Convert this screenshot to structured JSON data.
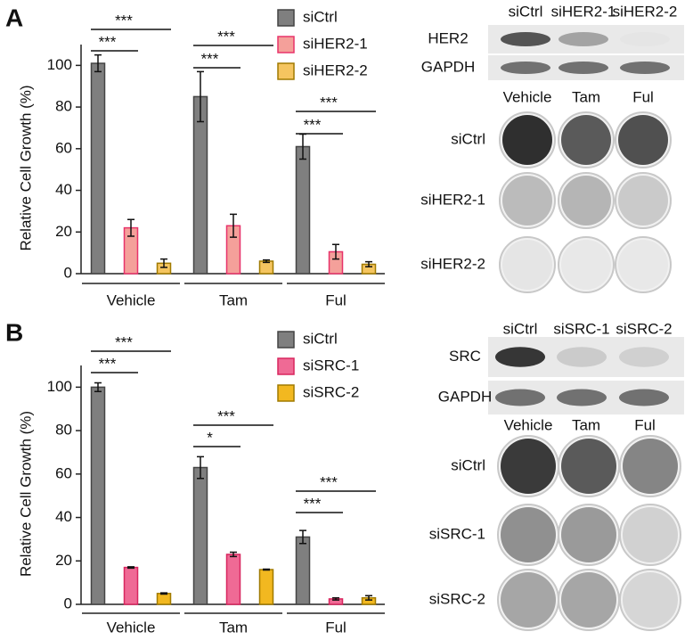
{
  "chart_data": [
    {
      "type": "bar",
      "panel_label": "A",
      "ylabel": "Relative Cell Growth (%)",
      "categories": [
        "Vehicle",
        "Tam",
        "Ful"
      ],
      "series": [
        {
          "name": "siCtrl",
          "color": "#7f7f7f",
          "edge": "#444444",
          "values": [
            101,
            85,
            61
          ],
          "errors": [
            4,
            12,
            6
          ]
        },
        {
          "name": "siHER2-1",
          "color": "#f4a09a",
          "edge": "#e8336a",
          "values": [
            22,
            23,
            10.5
          ],
          "errors": [
            4,
            5.5,
            3.5
          ]
        },
        {
          "name": "siHER2-2",
          "color": "#f5c560",
          "edge": "#a07a00",
          "values": [
            5,
            6,
            4.5
          ],
          "errors": [
            2,
            0.6,
            1.2
          ]
        }
      ],
      "ylim": [
        0,
        110
      ],
      "yticks": [
        0,
        20,
        40,
        60,
        80,
        100
      ],
      "annotations": [
        "***",
        "***",
        "***",
        "***",
        "***",
        "***"
      ]
    },
    {
      "type": "bar",
      "panel_label": "B",
      "ylabel": "Relative Cell Growth (%)",
      "categories": [
        "Vehicle",
        "Tam",
        "Ful"
      ],
      "series": [
        {
          "name": "siCtrl",
          "color": "#7f7f7f",
          "edge": "#444444",
          "values": [
            100,
            63,
            31
          ],
          "errors": [
            2,
            5,
            3
          ]
        },
        {
          "name": "siSRC-1",
          "color": "#ef6a95",
          "edge": "#d8265f",
          "values": [
            17,
            23,
            2.5
          ],
          "errors": [
            0.3,
            1,
            0.5
          ]
        },
        {
          "name": "siSRC-2",
          "color": "#f2b820",
          "edge": "#a07a00",
          "values": [
            5,
            16,
            3
          ],
          "errors": [
            0.3,
            0.2,
            1
          ]
        }
      ],
      "ylim": [
        0,
        110
      ],
      "yticks": [
        0,
        20,
        40,
        60,
        80,
        100
      ],
      "annotations": [
        "***",
        "***",
        "***",
        "*",
        "***",
        "***"
      ]
    }
  ],
  "blots": [
    {
      "lanes": [
        "siCtrl",
        "siHER2-1",
        "siHER2-2"
      ],
      "bands": [
        "HER2",
        "GAPDH"
      ],
      "treatments": [
        "Vehicle",
        "Tam",
        "Ful"
      ],
      "rows": [
        "siCtrl",
        "siHER2-1",
        "siHER2-2"
      ]
    },
    {
      "lanes": [
        "siCtrl",
        "siSRC-1",
        "siSRC-2"
      ],
      "bands": [
        "SRC",
        "GAPDH"
      ],
      "treatments": [
        "Vehicle",
        "Tam",
        "Ful"
      ],
      "rows": [
        "siCtrl",
        "siSRC-1",
        "siSRC-2"
      ]
    }
  ]
}
